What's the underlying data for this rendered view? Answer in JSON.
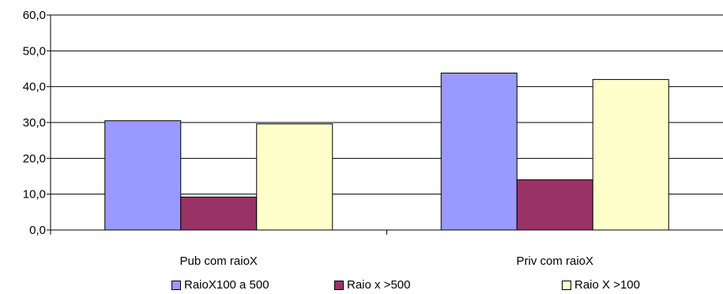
{
  "chart_data": {
    "type": "bar",
    "categories": [
      "Pub com raioX",
      "Priv com raioX"
    ],
    "series": [
      {
        "name": "RaioX100 a 500",
        "values": [
          30.5,
          43.8
        ],
        "color": "#9999ff"
      },
      {
        "name": "Raio x >500",
        "values": [
          9.2,
          14.0
        ],
        "color": "#993366"
      },
      {
        "name": "Raio X >100",
        "values": [
          29.6,
          42.0
        ],
        "color": "#ffffcc"
      }
    ],
    "ylim": [
      0,
      60
    ],
    "yticks": [
      "0,0",
      "10,0",
      "20,0",
      "30,0",
      "40,0",
      "50,0",
      "60,0"
    ],
    "grid": true,
    "legend_position": "bottom",
    "title": "",
    "xlabel": "",
    "ylabel": ""
  }
}
